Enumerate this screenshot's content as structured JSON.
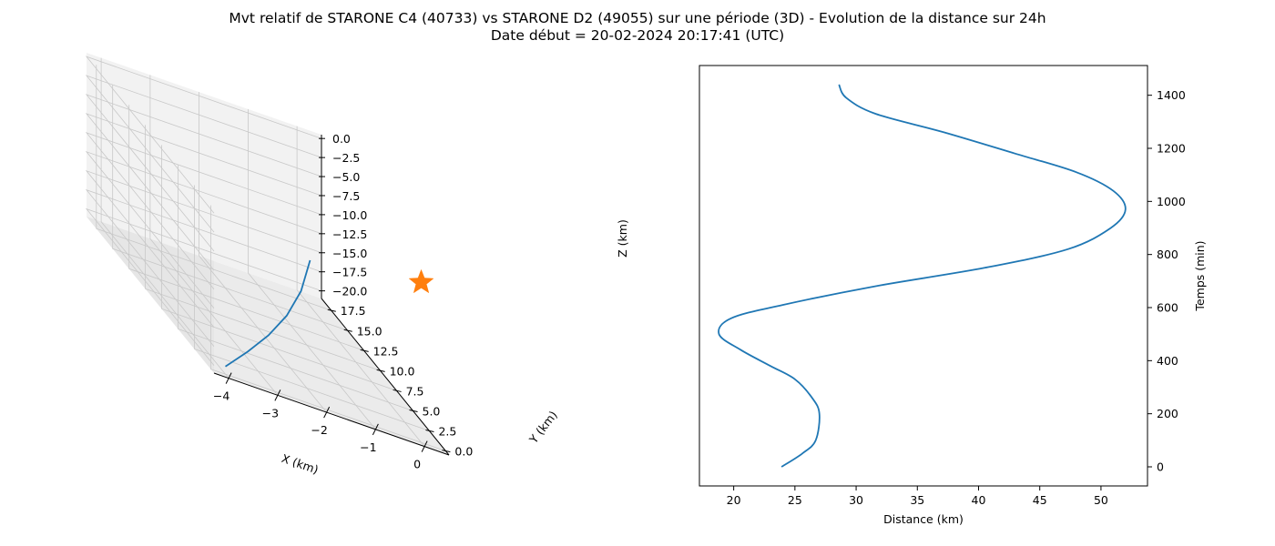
{
  "title_line1": "Mvt relatif de STARONE C4 (40733) vs STARONE D2 (49055) sur une période (3D) - Evolution de la distance sur 24h",
  "title_line2": "Date début = 20-02-2024 20:17:41 (UTC)",
  "colors": {
    "series": "#1f77b4",
    "marker": "#ff7f0e",
    "pane_light": "#f2f2f2",
    "pane_mid": "#ebebeb",
    "pane_dark": "#e6e6e6",
    "grid": "#c8c8c8"
  },
  "chart_data": [
    {
      "type": "line3d",
      "xlabel": "X (km)",
      "ylabel": "Y (km)",
      "zlabel": "Z (km)",
      "xlim": [
        -4.3,
        0.5
      ],
      "ylim": [
        -0.5,
        19
      ],
      "zlim": [
        -21,
        0.5
      ],
      "xticks": [
        "−4",
        "−3",
        "−2",
        "−1",
        "0"
      ],
      "yticks": [
        "0.0",
        "2.5",
        "5.0",
        "7.5",
        "10.0",
        "12.5",
        "15.0",
        "17.5"
      ],
      "zticks": [
        "0.0",
        "−2.5",
        "−5.0",
        "−7.5",
        "−10.0",
        "−12.5",
        "−15.0",
        "−17.5",
        "−20.0"
      ],
      "grid": true,
      "series": [
        {
          "x": [
            -4.0,
            -3.2,
            -2.4,
            -1.6,
            -0.8,
            0.0
          ],
          "y": [
            0.0,
            2.6,
            5.4,
            8.6,
            12.4,
            17.0
          ],
          "z": [
            -20.0,
            -19.0,
            -18.0,
            -17.0,
            -16.0,
            -15.0
          ]
        }
      ],
      "marker": {
        "symbol": "star",
        "x": 0,
        "y": 0,
        "z": 0
      }
    },
    {
      "type": "line",
      "xlabel": "Distance (km)",
      "ylabel": "Temps (min)",
      "xlim": [
        17.2,
        53.8
      ],
      "ylim": [
        -72,
        1512
      ],
      "xticks": [
        "20",
        "25",
        "30",
        "35",
        "40",
        "45",
        "50"
      ],
      "yticks": [
        "0",
        "200",
        "400",
        "600",
        "800",
        "1000",
        "1200",
        "1400"
      ],
      "grid": false,
      "series": [
        {
          "x": [
            23.9,
            25.6,
            26.7,
            27.0,
            26.4,
            25.0,
            23.0,
            20.6,
            18.8,
            19.8,
            24.0,
            31.5,
            40.5,
            47.3,
            50.8,
            52.0,
            51.0,
            48.0,
            43.0,
            37.2,
            31.6,
            29.2,
            28.6
          ],
          "y": [
            0,
            50,
            100,
            200,
            260,
            330,
            380,
            440,
            500,
            560,
            610,
            680,
            750,
            820,
            900,
            970,
            1040,
            1110,
            1180,
            1260,
            1330,
            1390,
            1440
          ]
        }
      ]
    }
  ]
}
